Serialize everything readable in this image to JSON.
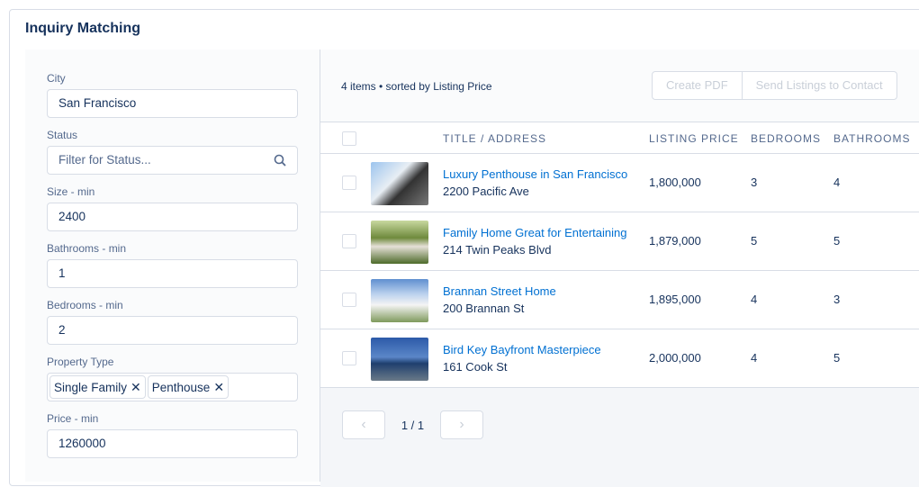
{
  "title": "Inquiry Matching",
  "filters": {
    "city": {
      "label": "City",
      "value": "San Francisco"
    },
    "status": {
      "label": "Status",
      "placeholder": "Filter for Status...",
      "icon": "search-icon"
    },
    "size_min": {
      "label": "Size - min",
      "value": "2400"
    },
    "bathrooms_min": {
      "label": "Bathrooms - min",
      "value": "1"
    },
    "bedrooms_min": {
      "label": "Bedrooms - min",
      "value": "2"
    },
    "property_type": {
      "label": "Property Type",
      "pills": [
        "Single Family",
        "Penthouse"
      ]
    },
    "price_min": {
      "label": "Price - min",
      "value": "1260000"
    }
  },
  "results": {
    "info": "4 items • sorted by Listing Price",
    "create_pdf": "Create PDF",
    "send": "Send Listings to Contact",
    "columns": [
      "TITLE / ADDRESS",
      "LISTING PRICE",
      "BEDROOMS",
      "BATHROOMS"
    ],
    "rows": [
      {
        "title": "Luxury Penthouse in San Francisco",
        "address": "2200 Pacific Ave",
        "price": "1,800,000",
        "bedrooms": "3",
        "bathrooms": "4"
      },
      {
        "title": "Family Home Great for Entertaining",
        "address": "214 Twin Peaks Blvd",
        "price": "1,879,000",
        "bedrooms": "5",
        "bathrooms": "5"
      },
      {
        "title": "Brannan Street Home",
        "address": "200 Brannan St",
        "price": "1,895,000",
        "bedrooms": "4",
        "bathrooms": "3"
      },
      {
        "title": "Bird Key Bayfront Masterpiece",
        "address": "161 Cook St",
        "price": "2,000,000",
        "bedrooms": "4",
        "bathrooms": "5"
      }
    ],
    "page": "1 / 1",
    "prev": "‹",
    "next": "›"
  }
}
